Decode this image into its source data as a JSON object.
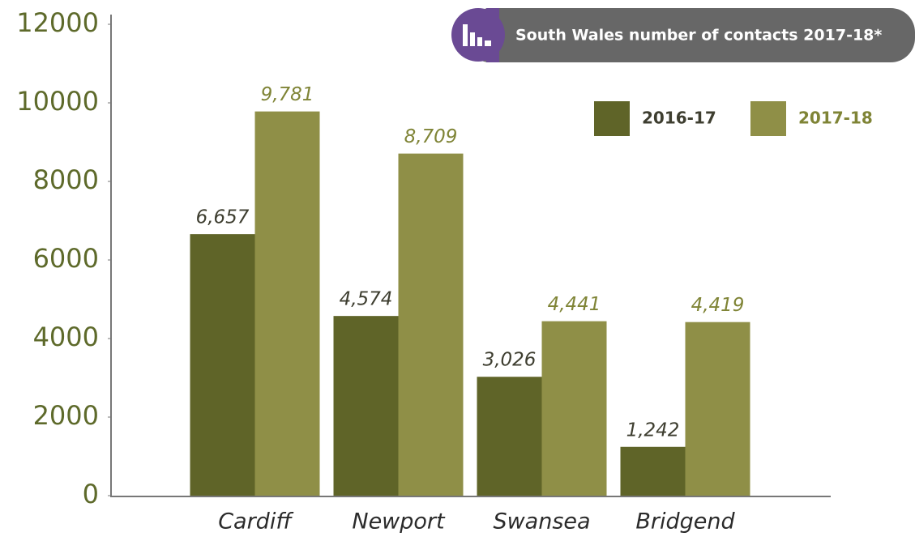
{
  "chart_data": {
    "type": "bar",
    "title": "South Wales number of contacts 2017-18*",
    "categories": [
      "Cardiff",
      "Newport",
      "Swansea",
      "Bridgend"
    ],
    "series": [
      {
        "name": "2016-17",
        "color": "#5f6428",
        "values": [
          6657,
          4574,
          3026,
          1242
        ],
        "value_labels": [
          "6,657",
          "4,574",
          "3,026",
          "1,242"
        ]
      },
      {
        "name": "2017-18",
        "color": "#8f8f47",
        "values": [
          9781,
          8709,
          4441,
          4419
        ],
        "value_labels": [
          "9,781",
          "8,709",
          "4,441",
          "4,419"
        ]
      }
    ],
    "ylim": [
      0,
      12000
    ],
    "yticks": [
      0,
      2000,
      4000,
      6000,
      8000,
      10000,
      12000
    ],
    "legend": "top-right"
  }
}
